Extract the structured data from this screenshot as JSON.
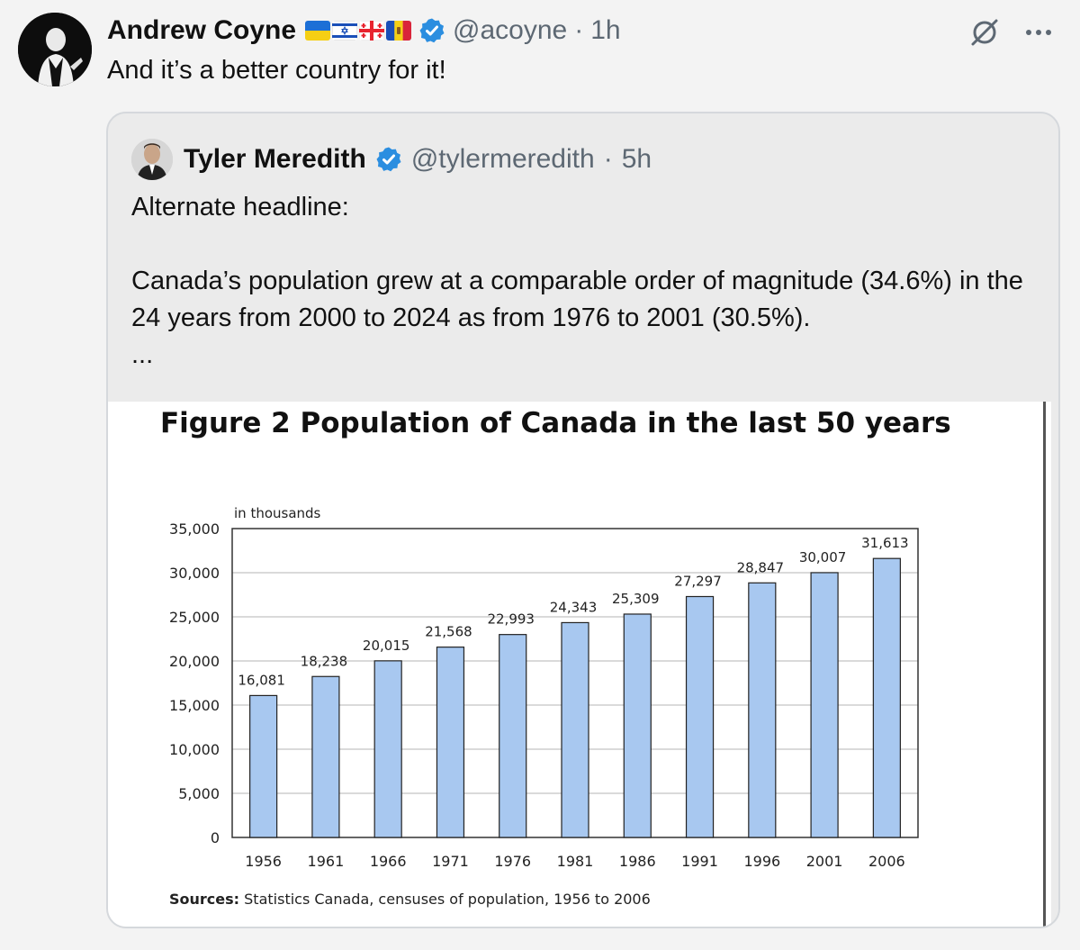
{
  "post": {
    "author": "Andrew Coyne",
    "handle": "@acoyne",
    "separator": "·",
    "time": "1h",
    "text": "And it’s a better country for it!",
    "flags": [
      "flag-ukraine",
      "flag-israel",
      "flag-georgia",
      "flag-moldova"
    ],
    "icons": [
      "verified-icon",
      "mute-icon",
      "more-icon"
    ]
  },
  "quote": {
    "author": "Tyler Meredith",
    "handle": "@tylermeredith",
    "separator": "·",
    "time": "5h",
    "line1": "Alternate headline:",
    "line2": "Canada’s population grew at a comparable order of magnitude (34.6%) in the 24 years from 2000 to 2024 as from 1976 to 2001 (30.5%).",
    "line3": "..."
  },
  "figure": {
    "source_label": "Sources:",
    "source_text": " Statistics Canada, censuses of population, 1956 to 2006"
  },
  "chart_data": {
    "type": "bar",
    "title": "Figure 2 Population of Canada in the last 50 years",
    "ylabel": "in thousands",
    "xlabel": "",
    "categories": [
      "1956",
      "1961",
      "1966",
      "1971",
      "1976",
      "1981",
      "1986",
      "1991",
      "1996",
      "2001",
      "2006"
    ],
    "values": [
      16081,
      18238,
      20015,
      21568,
      22993,
      24343,
      25309,
      27297,
      28847,
      30007,
      31613
    ],
    "data_labels": [
      "16,081",
      "18,238",
      "20,015",
      "21,568",
      "22,993",
      "24,343",
      "25,309",
      "27,297",
      "28,847",
      "30,007",
      "31,613"
    ],
    "yticks": [
      0,
      5000,
      10000,
      15000,
      20000,
      25000,
      30000,
      35000
    ],
    "ytick_labels": [
      "0",
      "5,000",
      "10,000",
      "15,000",
      "20,000",
      "25,000",
      "30,000",
      "35,000"
    ],
    "ylim": [
      0,
      35000
    ],
    "grid": true,
    "bar_color": "#a8c8f0",
    "bar_edge": "#222222"
  }
}
